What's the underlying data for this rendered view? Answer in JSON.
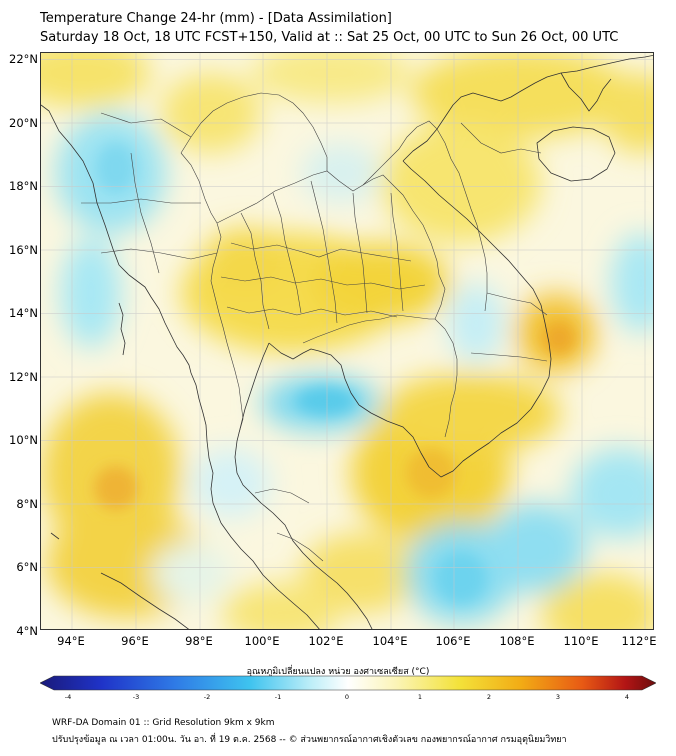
{
  "title": "Temperature Change 24-hr (mm) - [Data Assimilation]",
  "subtitle": "Saturday 18 Oct, 18 UTC FCST+150, Valid at :: Sat 25 Oct, 00 UTC to Sun 26 Oct, 00 UTC",
  "map": {
    "lat_labels": [
      "22°N",
      "20°N",
      "18°N",
      "16°N",
      "14°N",
      "12°N",
      "10°N",
      "8°N",
      "6°N",
      "4°N"
    ],
    "lon_labels": [
      "94°E",
      "96°E",
      "98°E",
      "100°E",
      "102°E",
      "104°E",
      "106°E",
      "108°E",
      "110°E",
      "112°E"
    ],
    "extent": {
      "lon_min": 93,
      "lon_max": 112.3,
      "lat_min": 4,
      "lat_max": 22.2
    }
  },
  "colorbar": {
    "title": "อุณหภูมิเปลี่ยนแปลง หน่วย องศาเซลเซียส (°C)",
    "ticks": [
      "-4",
      "-3",
      "-2",
      "-1",
      "0",
      "1",
      "2",
      "3",
      "4"
    ],
    "range": [
      -4,
      4
    ],
    "colors": [
      "#1a1a7a",
      "#1f33c8",
      "#2f7be6",
      "#3ec3ef",
      "#bdeef8",
      "#ffffff",
      "#fbf4b5",
      "#f3e23a",
      "#f2ac15",
      "#e85a14",
      "#b31515",
      "#6b0d0d"
    ]
  },
  "footer": {
    "line1": "WRF-DA Domain 01 :: Grid Resolution 9km x 9km",
    "line2": "ปรับปรุงข้อมูล ณ เวลา 01:00น. วัน อา. ที่ 19 ต.ค. 2568 -- © ส่วนพยากรณ์อากาศเชิงตัวเลข กองพยากรณ์อากาศ กรมอุตุนิยมวิทยา"
  }
}
